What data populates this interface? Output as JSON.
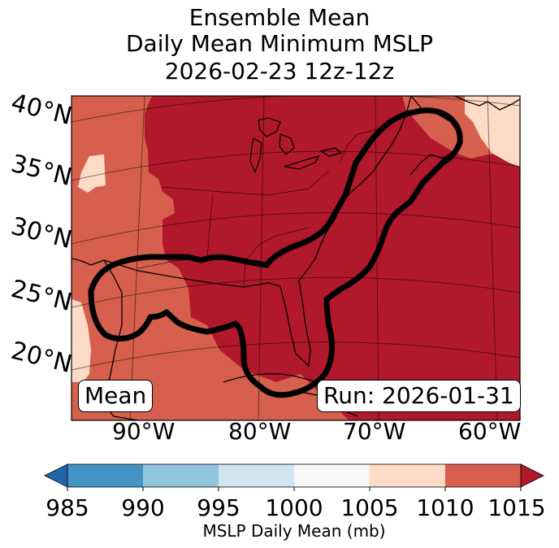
{
  "title": {
    "line1": "Ensemble Mean",
    "line2": "Daily Mean Minimum MSLP",
    "line3": "2026-02-23 12z-12z"
  },
  "map": {
    "lat_labels": [
      "40°N",
      "35°N",
      "30°N",
      "25°N",
      "20°N"
    ],
    "lon_labels": [
      "90°W",
      "80°W",
      "70°W",
      "60°W"
    ],
    "mean_label": "Mean",
    "run_label": "Run: 2026-01-31"
  },
  "colorbar": {
    "label": "MSLP Daily Mean (mb)",
    "ticks": [
      "985",
      "990",
      "995",
      "1000",
      "1005",
      "1010",
      "1015"
    ],
    "colors": [
      "#4393c3",
      "#92c5de",
      "#d1e5f0",
      "#f7f7f7",
      "#fddbc7",
      "#d6604d"
    ],
    "under_color": "#2166ac",
    "over_color": "#b2182b"
  },
  "colors": {
    "level_1015_plus": "#b2182b",
    "level_1010": "#d6604d",
    "level_1005": "#fddbc7"
  }
}
